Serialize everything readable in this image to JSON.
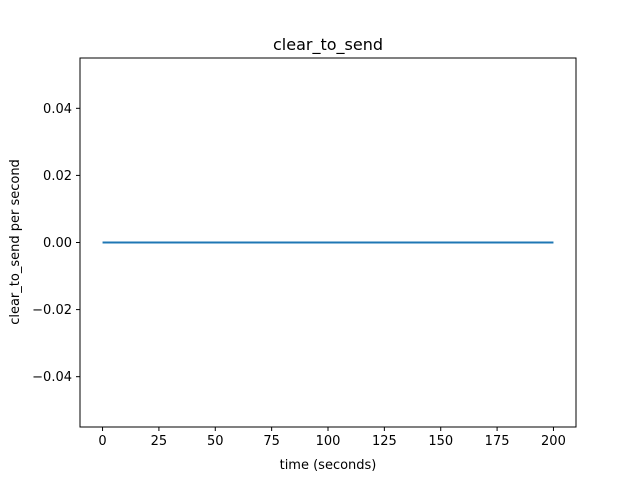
{
  "chart_data": {
    "type": "line",
    "title": "clear_to_send",
    "xlabel": "time (seconds)",
    "ylabel": "clear_to_send per second",
    "xlim": [
      -10,
      210
    ],
    "ylim": [
      -0.055,
      0.055
    ],
    "x_ticks": [
      0,
      25,
      50,
      75,
      100,
      125,
      150,
      175,
      200
    ],
    "x_tick_labels": [
      "0",
      "25",
      "50",
      "75",
      "100",
      "125",
      "150",
      "175",
      "200"
    ],
    "y_ticks": [
      0.04,
      0.02,
      0.0,
      -0.02,
      -0.04
    ],
    "y_tick_labels": [
      "0.04",
      "0.02",
      "0.00",
      "−0.02",
      "−0.04"
    ],
    "grid": false,
    "series": [
      {
        "color": "#1f77b4",
        "x": [
          0,
          200
        ],
        "y": [
          0,
          0
        ]
      }
    ]
  }
}
